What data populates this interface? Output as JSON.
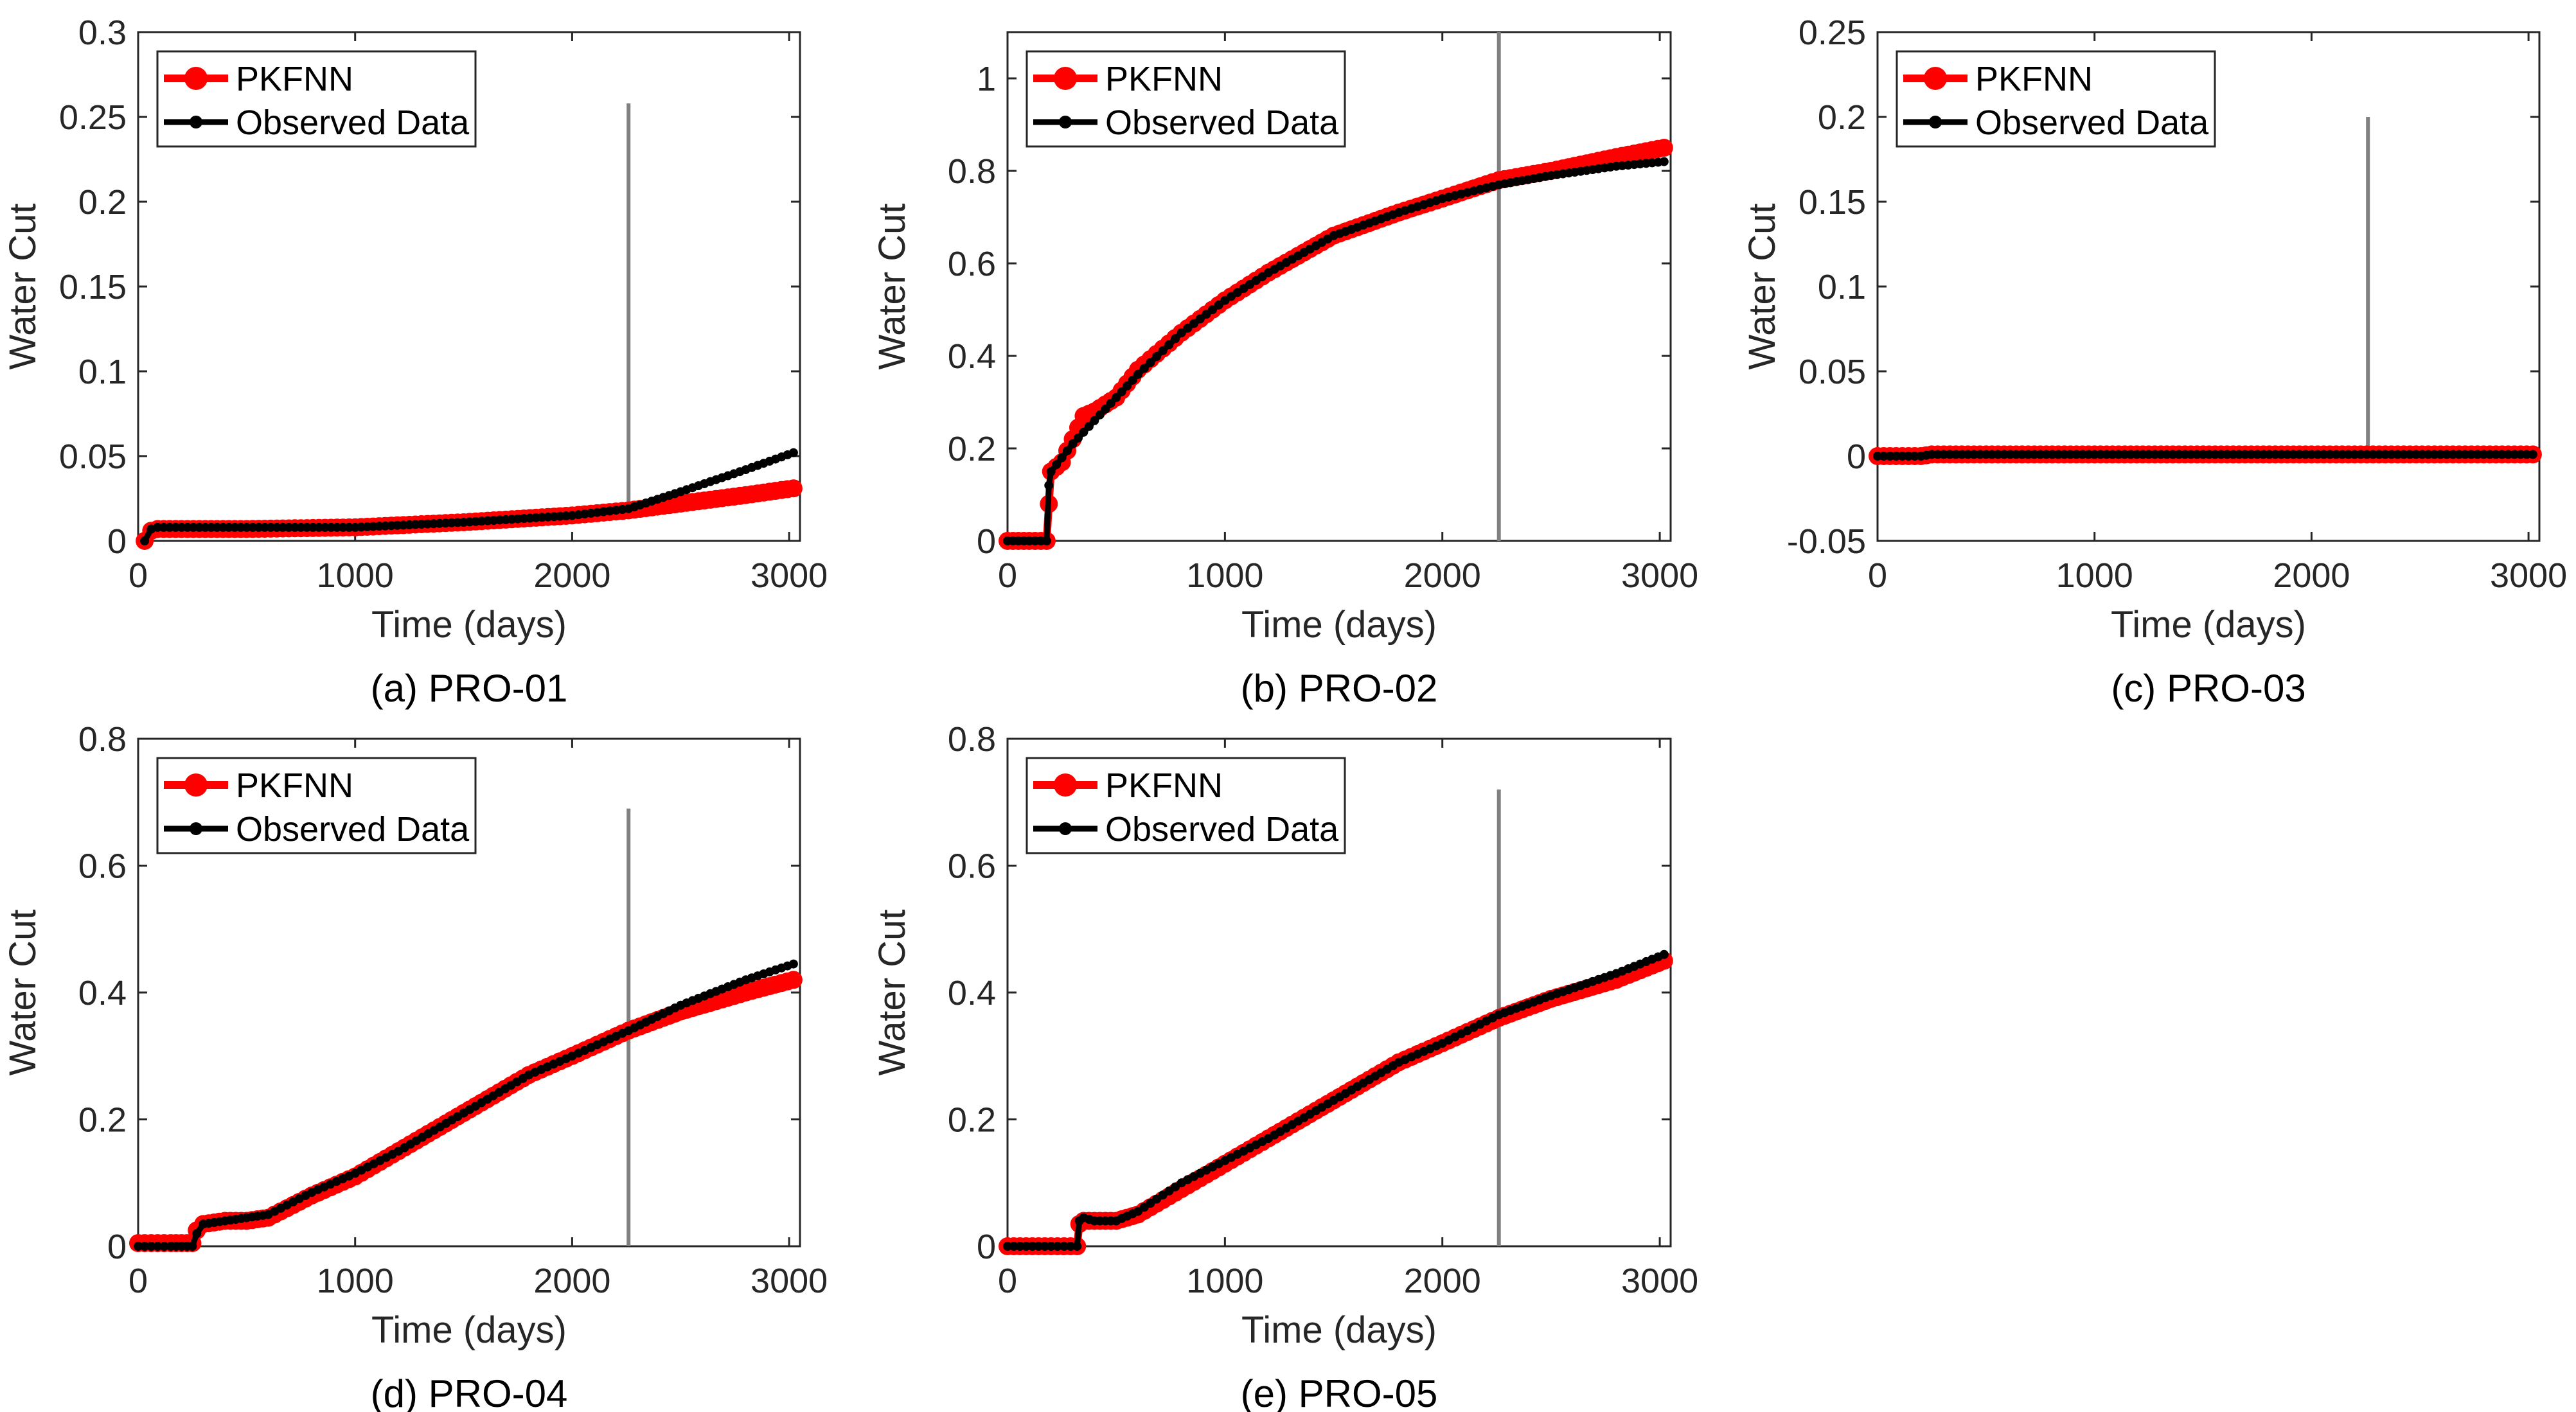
{
  "figure": {
    "legend_pred": "PKFNN",
    "legend_obs": "Observed Data",
    "colors": {
      "pred": "#ff0000",
      "obs": "#000000",
      "marker": "#808080"
    }
  },
  "chart_data": [
    {
      "type": "line",
      "caption": "(a) PRO-01",
      "xlabel": "Time (days)",
      "ylabel": "Water Cut",
      "xlim": [
        0,
        3050
      ],
      "ylim": [
        0,
        0.3
      ],
      "xticks": [
        0,
        1000,
        2000,
        3000
      ],
      "xtick_labels": [
        "0",
        "1000",
        "2000",
        "3000"
      ],
      "yticks": [
        0,
        0.05,
        0.1,
        0.15,
        0.2,
        0.25,
        0.3
      ],
      "ytick_labels": [
        "0",
        "0.05",
        "0.1",
        "0.15",
        "0.2",
        "0.25",
        "0.3"
      ],
      "split_line": {
        "x": 2260,
        "y_range": [
          0.02,
          0.258
        ]
      },
      "series": [
        {
          "name": "PKFNN",
          "x": [
            30,
            60,
            90,
            200,
            500,
            1000,
            1500,
            2000,
            2260,
            2500,
            2800,
            3020
          ],
          "y": [
            0.0,
            0.006,
            0.007,
            0.007,
            0.007,
            0.008,
            0.011,
            0.015,
            0.018,
            0.022,
            0.027,
            0.031
          ]
        },
        {
          "name": "Observed Data",
          "x": [
            30,
            60,
            90,
            200,
            500,
            1000,
            1500,
            2000,
            2260,
            2500,
            2800,
            3020
          ],
          "y": [
            0.0,
            0.007,
            0.008,
            0.008,
            0.008,
            0.008,
            0.011,
            0.015,
            0.019,
            0.029,
            0.042,
            0.052
          ]
        }
      ]
    },
    {
      "type": "line",
      "caption": "(b) PRO-02",
      "xlabel": "Time (days)",
      "ylabel": "Water Cut",
      "xlim": [
        0,
        3050
      ],
      "ylim": [
        0,
        1.1
      ],
      "xticks": [
        0,
        1000,
        2000,
        3000
      ],
      "xtick_labels": [
        "0",
        "1000",
        "2000",
        "3000"
      ],
      "yticks": [
        0,
        0.2,
        0.4,
        0.6,
        0.8,
        1
      ],
      "ytick_labels": [
        "0",
        "0.2",
        "0.4",
        "0.6",
        "0.8",
        "1"
      ],
      "split_line": {
        "x": 2260,
        "y_range": [
          0,
          1.1
        ]
      },
      "series": [
        {
          "name": "PKFNN",
          "x": [
            0,
            100,
            180,
            190,
            200,
            250,
            300,
            350,
            400,
            500,
            600,
            800,
            1000,
            1200,
            1500,
            1800,
            2000,
            2260,
            2500,
            2800,
            3020
          ],
          "y": [
            0.0,
            0.0,
            0.0,
            0.08,
            0.15,
            0.17,
            0.22,
            0.27,
            0.28,
            0.31,
            0.37,
            0.45,
            0.52,
            0.58,
            0.66,
            0.71,
            0.74,
            0.78,
            0.8,
            0.83,
            0.85
          ]
        },
        {
          "name": "Observed Data",
          "x": [
            0,
            100,
            180,
            190,
            200,
            250,
            300,
            400,
            500,
            600,
            800,
            1000,
            1200,
            1500,
            1800,
            2000,
            2260,
            2500,
            2800,
            3020
          ],
          "y": [
            0.0,
            0.0,
            0.0,
            0.12,
            0.15,
            0.18,
            0.21,
            0.26,
            0.31,
            0.36,
            0.45,
            0.52,
            0.58,
            0.66,
            0.71,
            0.74,
            0.77,
            0.79,
            0.81,
            0.82
          ]
        }
      ]
    },
    {
      "type": "line",
      "caption": "(c) PRO-03",
      "xlabel": "Time (days)",
      "ylabel": "Water Cut",
      "xlim": [
        0,
        3050
      ],
      "ylim": [
        -0.05,
        0.25
      ],
      "xticks": [
        0,
        1000,
        2000,
        3000
      ],
      "xtick_labels": [
        "0",
        "1000",
        "2000",
        "3000"
      ],
      "yticks": [
        -0.05,
        0,
        0.05,
        0.1,
        0.15,
        0.2,
        0.25
      ],
      "ytick_labels": [
        "-0.05",
        "0",
        "0.05",
        "0.1",
        "0.15",
        "0.2",
        "0.25"
      ],
      "split_line": {
        "x": 2260,
        "y_range": [
          0,
          0.2
        ]
      },
      "series": [
        {
          "name": "PKFNN",
          "x": [
            0,
            200,
            250,
            1000,
            2000,
            3020
          ],
          "y": [
            0.0,
            0.0,
            0.001,
            0.001,
            0.001,
            0.001
          ]
        },
        {
          "name": "Observed Data",
          "x": [
            0,
            200,
            250,
            1000,
            2000,
            3020
          ],
          "y": [
            0.0,
            0.0,
            0.001,
            0.001,
            0.001,
            0.001
          ]
        }
      ]
    },
    {
      "type": "line",
      "caption": "(d) PRO-04",
      "xlabel": "Time (days)",
      "ylabel": "Water Cut",
      "xlim": [
        0,
        3050
      ],
      "ylim": [
        0,
        0.8
      ],
      "xticks": [
        0,
        1000,
        2000,
        3000
      ],
      "xtick_labels": [
        "0",
        "1000",
        "2000",
        "3000"
      ],
      "yticks": [
        0,
        0.2,
        0.4,
        0.6,
        0.8
      ],
      "ytick_labels": [
        "0",
        "0.2",
        "0.4",
        "0.6",
        "0.8"
      ],
      "split_line": {
        "x": 2260,
        "y_range": [
          0,
          0.69
        ]
      },
      "series": [
        {
          "name": "PKFNN",
          "x": [
            0,
            150,
            250,
            270,
            300,
            400,
            500,
            600,
            800,
            1000,
            1200,
            1500,
            1800,
            2000,
            2260,
            2500,
            2800,
            3020
          ],
          "y": [
            0.005,
            0.005,
            0.005,
            0.025,
            0.035,
            0.04,
            0.04,
            0.045,
            0.08,
            0.11,
            0.15,
            0.21,
            0.27,
            0.3,
            0.34,
            0.37,
            0.4,
            0.42
          ]
        },
        {
          "name": "Observed Data",
          "x": [
            0,
            150,
            250,
            270,
            300,
            400,
            500,
            600,
            800,
            1000,
            1200,
            1500,
            1800,
            2000,
            2260,
            2500,
            2800,
            3020
          ],
          "y": [
            0.0,
            0.0,
            0.0,
            0.02,
            0.035,
            0.04,
            0.045,
            0.05,
            0.085,
            0.115,
            0.15,
            0.21,
            0.27,
            0.3,
            0.34,
            0.38,
            0.42,
            0.445
          ]
        }
      ]
    },
    {
      "type": "line",
      "caption": "(e) PRO-05",
      "xlabel": "Time (days)",
      "ylabel": "Water Cut",
      "xlim": [
        0,
        3050
      ],
      "ylim": [
        0,
        0.8
      ],
      "xticks": [
        0,
        1000,
        2000,
        3000
      ],
      "xtick_labels": [
        "0",
        "1000",
        "2000",
        "3000"
      ],
      "yticks": [
        0,
        0.2,
        0.4,
        0.6,
        0.8
      ],
      "ytick_labels": [
        "0",
        "0.2",
        "0.4",
        "0.6",
        "0.8"
      ],
      "split_line": {
        "x": 2260,
        "y_range": [
          0,
          0.72
        ]
      },
      "series": [
        {
          "name": "PKFNN",
          "x": [
            0,
            200,
            320,
            330,
            350,
            400,
            500,
            600,
            800,
            1000,
            1200,
            1500,
            1800,
            2000,
            2260,
            2500,
            2800,
            3020
          ],
          "y": [
            0.0,
            0.0,
            0.0,
            0.035,
            0.04,
            0.04,
            0.04,
            0.05,
            0.09,
            0.13,
            0.17,
            0.23,
            0.29,
            0.32,
            0.36,
            0.39,
            0.42,
            0.45
          ]
        },
        {
          "name": "Observed Data",
          "x": [
            0,
            200,
            320,
            330,
            350,
            400,
            500,
            600,
            800,
            1000,
            1200,
            1500,
            1800,
            2000,
            2260,
            2500,
            2800,
            3020
          ],
          "y": [
            0.0,
            0.0,
            0.0,
            0.04,
            0.045,
            0.04,
            0.04,
            0.055,
            0.1,
            0.135,
            0.17,
            0.23,
            0.29,
            0.32,
            0.365,
            0.395,
            0.43,
            0.46
          ]
        }
      ]
    }
  ]
}
